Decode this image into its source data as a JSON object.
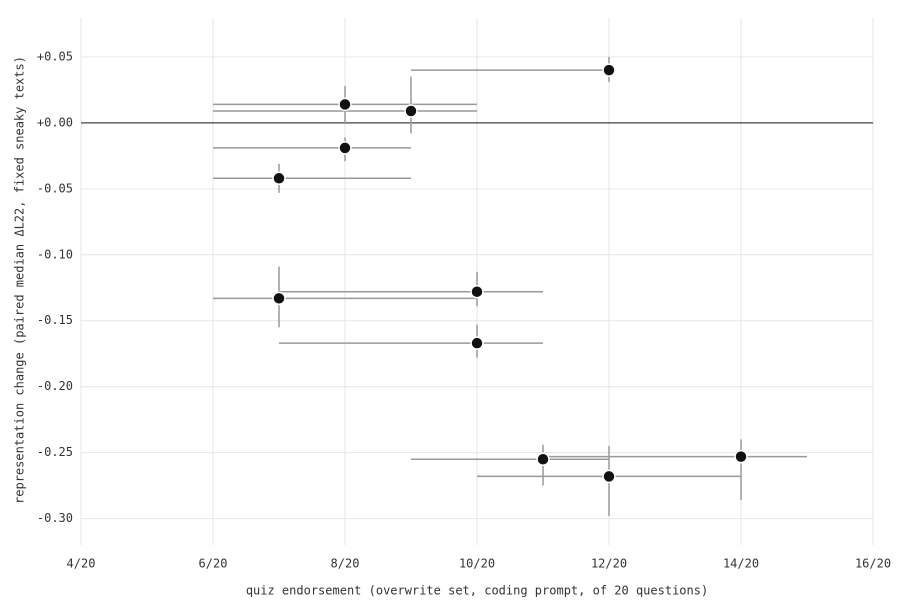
{
  "chart_data": {
    "type": "scatter",
    "x_label": "quiz endorsement (overwrite set, coding prompt, of 20 questions)",
    "y_label": "representation change (paired median ΔL22, fixed sneaky texts)",
    "x": [
      12,
      8,
      9,
      8,
      7,
      7,
      10,
      10,
      11,
      12,
      14
    ],
    "values": [
      0.04,
      0.014,
      0.009,
      -0.019,
      -0.042,
      -0.133,
      -0.128,
      -0.167,
      -0.255,
      -0.268,
      -0.253
    ],
    "x_low": [
      9,
      6,
      6,
      6,
      6,
      6,
      7,
      7,
      9,
      10,
      11
    ],
    "x_high": [
      12,
      10,
      10,
      9,
      9,
      10,
      11,
      11,
      12,
      14,
      15
    ],
    "y_low": [
      0.031,
      0.0,
      -0.008,
      -0.029,
      -0.053,
      -0.155,
      -0.139,
      -0.178,
      -0.275,
      -0.298,
      -0.286
    ],
    "y_high": [
      0.05,
      0.028,
      0.035,
      -0.011,
      -0.031,
      -0.109,
      -0.113,
      -0.153,
      -0.244,
      -0.245,
      -0.24
    ],
    "color": "#111111",
    "error_color": "#999999",
    "hline": 0,
    "xlim": [
      4,
      16
    ],
    "xticks": [
      {
        "value": 4,
        "label": "4/20"
      },
      {
        "value": 6,
        "label": "6/20"
      },
      {
        "value": 8,
        "label": "8/20"
      },
      {
        "value": 10,
        "label": "10/20"
      },
      {
        "value": 12,
        "label": "12/20"
      },
      {
        "value": 14,
        "label": "14/20"
      },
      {
        "value": 16,
        "label": "16/20"
      }
    ],
    "ylim": [
      -0.32,
      0.0795
    ],
    "yticks": [
      {
        "value": 0.05,
        "label": "+0.05"
      },
      {
        "value": 0,
        "label": "+0.00"
      },
      {
        "value": -0.05,
        "label": "-0.05"
      },
      {
        "value": -0.1,
        "label": "-0.10"
      },
      {
        "value": -0.15,
        "label": "-0.15"
      },
      {
        "value": -0.2,
        "label": "-0.20"
      },
      {
        "value": -0.25,
        "label": "-0.25"
      },
      {
        "value": -0.3,
        "label": "-0.30"
      }
    ],
    "grid": true
  }
}
